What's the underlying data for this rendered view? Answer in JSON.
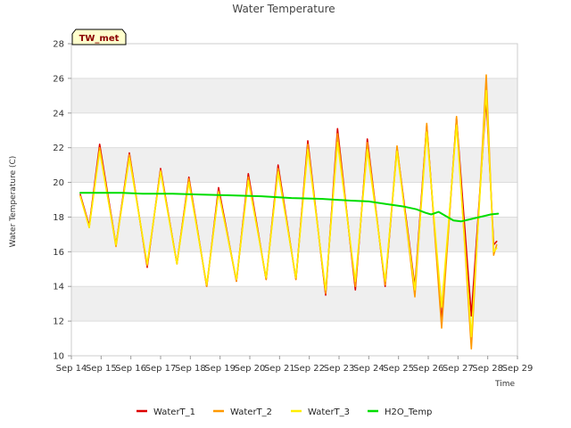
{
  "chart_data": {
    "type": "line",
    "title": "Water Temperature",
    "xlabel": "Time",
    "ylabel": "Water Temperature (C)",
    "badge": "TW_met",
    "ylim": [
      10,
      28
    ],
    "yticks": [
      10,
      12,
      14,
      16,
      18,
      20,
      22,
      24,
      26,
      28
    ],
    "xlim": [
      0,
      15
    ],
    "xtick_labels": [
      "Sep 14",
      "Sep 15",
      "Sep 16",
      "Sep 17",
      "Sep 18",
      "Sep 19",
      "Sep 20",
      "Sep 21",
      "Sep 22",
      "Sep 23",
      "Sep 24",
      "Sep 25",
      "Sep 26",
      "Sep 27",
      "Sep 28",
      "Sep 29"
    ],
    "bands": true,
    "legend_position": "bottom",
    "series": [
      {
        "name": "WaterT_1",
        "color": "#dd0000",
        "points": [
          [
            0.3,
            19.3
          ],
          [
            0.6,
            17.5
          ],
          [
            0.95,
            22.2
          ],
          [
            1.5,
            16.4
          ],
          [
            1.95,
            21.7
          ],
          [
            2.55,
            15.1
          ],
          [
            3.0,
            20.8
          ],
          [
            3.55,
            15.3
          ],
          [
            3.95,
            20.3
          ],
          [
            4.55,
            14.0
          ],
          [
            4.95,
            19.7
          ],
          [
            5.55,
            14.3
          ],
          [
            5.95,
            20.5
          ],
          [
            6.55,
            14.4
          ],
          [
            6.95,
            21.0
          ],
          [
            7.55,
            14.4
          ],
          [
            7.95,
            22.4
          ],
          [
            8.55,
            13.5
          ],
          [
            8.95,
            23.1
          ],
          [
            9.55,
            13.8
          ],
          [
            9.95,
            22.5
          ],
          [
            10.55,
            14.0
          ],
          [
            10.95,
            22.0
          ],
          [
            11.55,
            14.0
          ],
          [
            11.95,
            23.3
          ],
          [
            12.45,
            12.0
          ],
          [
            12.95,
            23.7
          ],
          [
            13.45,
            12.3
          ],
          [
            13.95,
            24.8
          ],
          [
            14.2,
            16.4
          ],
          [
            14.3,
            16.6
          ]
        ]
      },
      {
        "name": "WaterT_2",
        "color": "#ff9900",
        "points": [
          [
            0.3,
            19.2
          ],
          [
            0.6,
            17.4
          ],
          [
            0.95,
            22.0
          ],
          [
            1.5,
            16.3
          ],
          [
            1.95,
            21.6
          ],
          [
            2.55,
            15.2
          ],
          [
            3.0,
            20.7
          ],
          [
            3.55,
            15.3
          ],
          [
            3.95,
            20.2
          ],
          [
            4.55,
            14.0
          ],
          [
            4.95,
            19.5
          ],
          [
            5.55,
            14.3
          ],
          [
            5.95,
            20.3
          ],
          [
            6.55,
            14.4
          ],
          [
            6.95,
            20.8
          ],
          [
            7.55,
            14.4
          ],
          [
            7.95,
            22.2
          ],
          [
            8.55,
            13.6
          ],
          [
            8.95,
            22.8
          ],
          [
            9.55,
            14.0
          ],
          [
            9.95,
            22.3
          ],
          [
            10.55,
            14.1
          ],
          [
            10.95,
            22.1
          ],
          [
            11.55,
            13.4
          ],
          [
            11.95,
            23.4
          ],
          [
            12.45,
            11.6
          ],
          [
            12.95,
            23.8
          ],
          [
            13.45,
            10.4
          ],
          [
            13.95,
            26.2
          ],
          [
            14.2,
            15.8
          ],
          [
            14.3,
            16.4
          ]
        ]
      },
      {
        "name": "WaterT_3",
        "color": "#ffee00",
        "points": [
          [
            0.3,
            19.2
          ],
          [
            0.6,
            17.4
          ],
          [
            0.95,
            21.8
          ],
          [
            1.5,
            16.4
          ],
          [
            1.95,
            21.4
          ],
          [
            2.55,
            15.3
          ],
          [
            3.0,
            20.6
          ],
          [
            3.55,
            15.3
          ],
          [
            3.95,
            20.0
          ],
          [
            4.55,
            14.1
          ],
          [
            4.95,
            19.4
          ],
          [
            5.55,
            14.4
          ],
          [
            5.95,
            20.1
          ],
          [
            6.55,
            14.5
          ],
          [
            6.95,
            20.6
          ],
          [
            7.55,
            14.5
          ],
          [
            7.95,
            21.9
          ],
          [
            8.55,
            13.8
          ],
          [
            8.95,
            22.3
          ],
          [
            9.55,
            14.3
          ],
          [
            9.95,
            21.9
          ],
          [
            10.55,
            14.3
          ],
          [
            10.95,
            21.8
          ],
          [
            11.55,
            13.8
          ],
          [
            11.95,
            22.9
          ],
          [
            12.45,
            12.8
          ],
          [
            12.95,
            23.3
          ],
          [
            13.45,
            11.1
          ],
          [
            13.95,
            25.3
          ],
          [
            14.2,
            16.0
          ],
          [
            14.3,
            16.2
          ]
        ]
      },
      {
        "name": "H2O_Temp",
        "color": "#00dd00",
        "points": [
          [
            0.3,
            19.4
          ],
          [
            1.0,
            19.4
          ],
          [
            1.7,
            19.4
          ],
          [
            2.4,
            19.35
          ],
          [
            3.4,
            19.35
          ],
          [
            4.4,
            19.3
          ],
          [
            5.4,
            19.25
          ],
          [
            6.4,
            19.2
          ],
          [
            7.4,
            19.1
          ],
          [
            8.4,
            19.05
          ],
          [
            9.4,
            18.95
          ],
          [
            10.0,
            18.9
          ],
          [
            10.6,
            18.75
          ],
          [
            11.2,
            18.6
          ],
          [
            11.6,
            18.45
          ],
          [
            11.9,
            18.25
          ],
          [
            12.1,
            18.15
          ],
          [
            12.35,
            18.3
          ],
          [
            12.6,
            18.05
          ],
          [
            12.85,
            17.8
          ],
          [
            13.1,
            17.75
          ],
          [
            13.35,
            17.85
          ],
          [
            13.6,
            17.95
          ],
          [
            13.85,
            18.05
          ],
          [
            14.1,
            18.15
          ],
          [
            14.35,
            18.2
          ]
        ]
      }
    ]
  }
}
